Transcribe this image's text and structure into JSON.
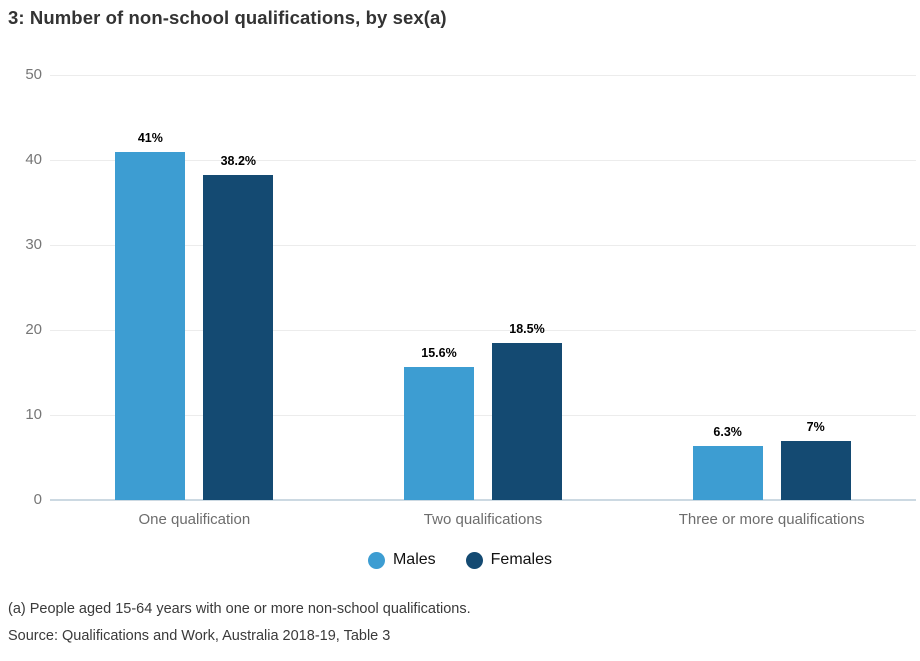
{
  "title": "3: Number of non-school qualifications, by sex(a)",
  "chart_data": {
    "type": "bar",
    "title": "3: Number of non-school qualifications, by sex(a)",
    "categories": [
      "One qualification",
      "Two qualifications",
      "Three or more qualifications"
    ],
    "series": [
      {
        "name": "Males",
        "color": "#3d9dd2",
        "values": [
          41,
          15.6,
          6.3
        ],
        "value_labels": [
          "41%",
          "15.6%",
          "6.3%"
        ]
      },
      {
        "name": "Females",
        "color": "#144a72",
        "values": [
          38.2,
          18.5,
          7
        ],
        "value_labels": [
          "38.2%",
          "18.5%",
          "7%"
        ]
      }
    ],
    "xlabel": "",
    "ylabel": "",
    "ylim": [
      0,
      50
    ],
    "yticks": [
      0,
      10,
      20,
      30,
      40,
      50
    ],
    "grid": true,
    "legend_position": "bottom"
  },
  "footnotes": [
    "(a) People aged 15-64 years with one or more non-school qualifications.",
    "Source: Qualifications and Work, Australia 2018-19, Table 3"
  ]
}
